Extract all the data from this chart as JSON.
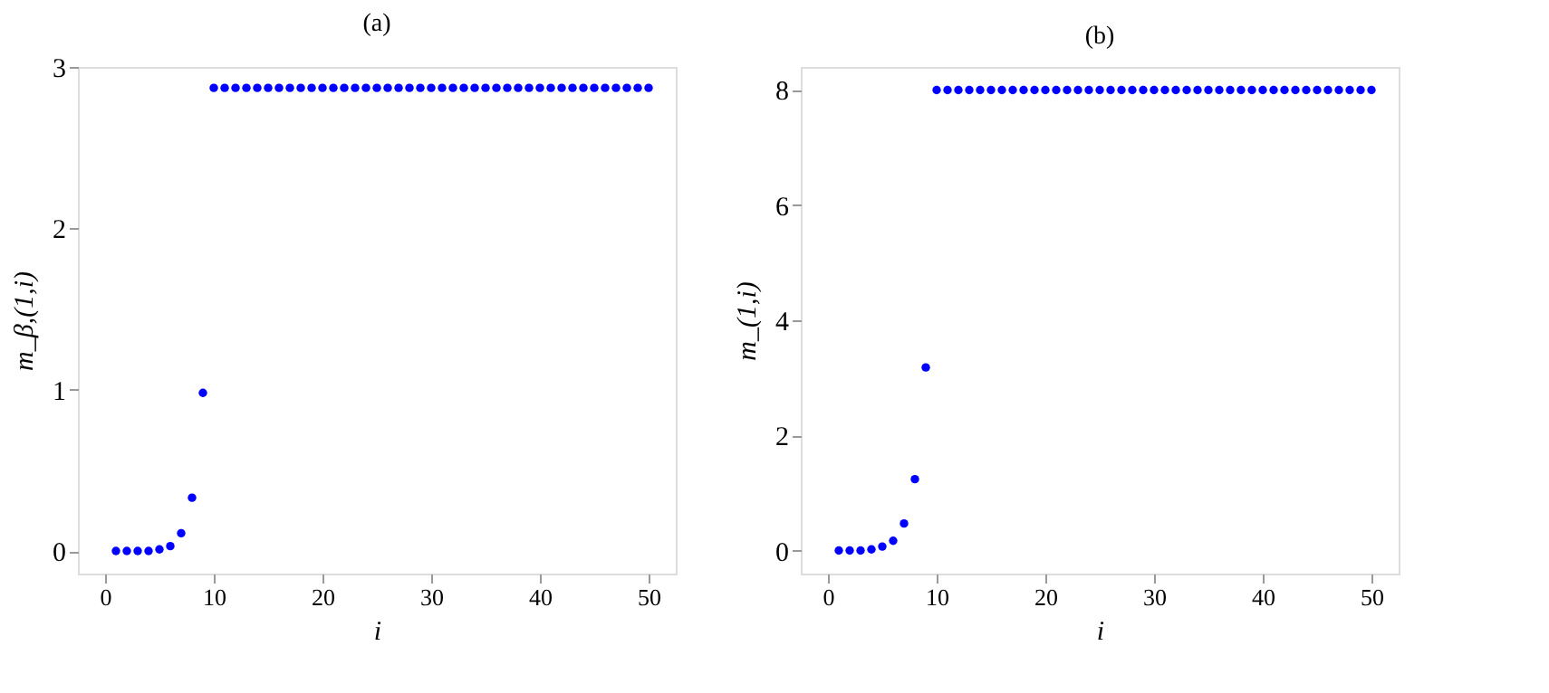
{
  "chart_data": [
    {
      "type": "scatter",
      "title": "(a)",
      "xlabel": "i",
      "ylabel": "m_β,(1,i)",
      "marker": "circle",
      "grid": false,
      "x": [
        1,
        2,
        3,
        4,
        5,
        6,
        7,
        8,
        9,
        10,
        11,
        12,
        13,
        14,
        15,
        16,
        17,
        18,
        19,
        20,
        21,
        22,
        23,
        24,
        25,
        26,
        27,
        28,
        29,
        30,
        31,
        32,
        33,
        34,
        35,
        36,
        37,
        38,
        39,
        40,
        41,
        42,
        43,
        44,
        45,
        46,
        47,
        48,
        49,
        50
      ],
      "series": [
        {
          "color": "#0000ff",
          "values": [
            0,
            0,
            0,
            0,
            0.01,
            0.03,
            0.11,
            0.33,
            0.98,
            2.87,
            2.87,
            2.87,
            2.87,
            2.87,
            2.87,
            2.87,
            2.87,
            2.87,
            2.87,
            2.87,
            2.87,
            2.87,
            2.87,
            2.87,
            2.87,
            2.87,
            2.87,
            2.87,
            2.87,
            2.87,
            2.87,
            2.87,
            2.87,
            2.87,
            2.87,
            2.87,
            2.87,
            2.87,
            2.87,
            2.87,
            2.87,
            2.87,
            2.87,
            2.87,
            2.87,
            2.87,
            2.87,
            2.87,
            2.87,
            2.87
          ]
        }
      ],
      "xlim": [
        -2.5,
        52.5
      ],
      "xticks": [
        0,
        10,
        20,
        30,
        40,
        50
      ],
      "ylim": [
        -0.14,
        3
      ],
      "yticks": [
        0,
        1,
        2,
        3
      ]
    },
    {
      "type": "scatter",
      "title": "(b)",
      "xlabel": "i",
      "ylabel": "m_(1,i)",
      "marker": "circle",
      "grid": false,
      "x": [
        1,
        2,
        3,
        4,
        5,
        6,
        7,
        8,
        9,
        10,
        11,
        12,
        13,
        14,
        15,
        16,
        17,
        18,
        19,
        20,
        21,
        22,
        23,
        24,
        25,
        26,
        27,
        28,
        29,
        30,
        31,
        32,
        33,
        34,
        35,
        36,
        37,
        38,
        39,
        40,
        41,
        42,
        43,
        44,
        45,
        46,
        47,
        48,
        49,
        50
      ],
      "series": [
        {
          "color": "#0000ff",
          "values": [
            0,
            0,
            0,
            0.02,
            0.07,
            0.17,
            0.47,
            1.24,
            3.18,
            8,
            8,
            8,
            8,
            8,
            8,
            8,
            8,
            8,
            8,
            8,
            8,
            8,
            8,
            8,
            8,
            8,
            8,
            8,
            8,
            8,
            8,
            8,
            8,
            8,
            8,
            8,
            8,
            8,
            8,
            8,
            8,
            8,
            8,
            8,
            8,
            8,
            8,
            8,
            8,
            8
          ]
        }
      ],
      "xlim": [
        -2.5,
        52.5
      ],
      "xticks": [
        0,
        10,
        20,
        30,
        40,
        50
      ],
      "ylim": [
        -0.4,
        8.4
      ],
      "yticks": [
        0,
        2,
        4,
        6,
        8
      ]
    }
  ]
}
